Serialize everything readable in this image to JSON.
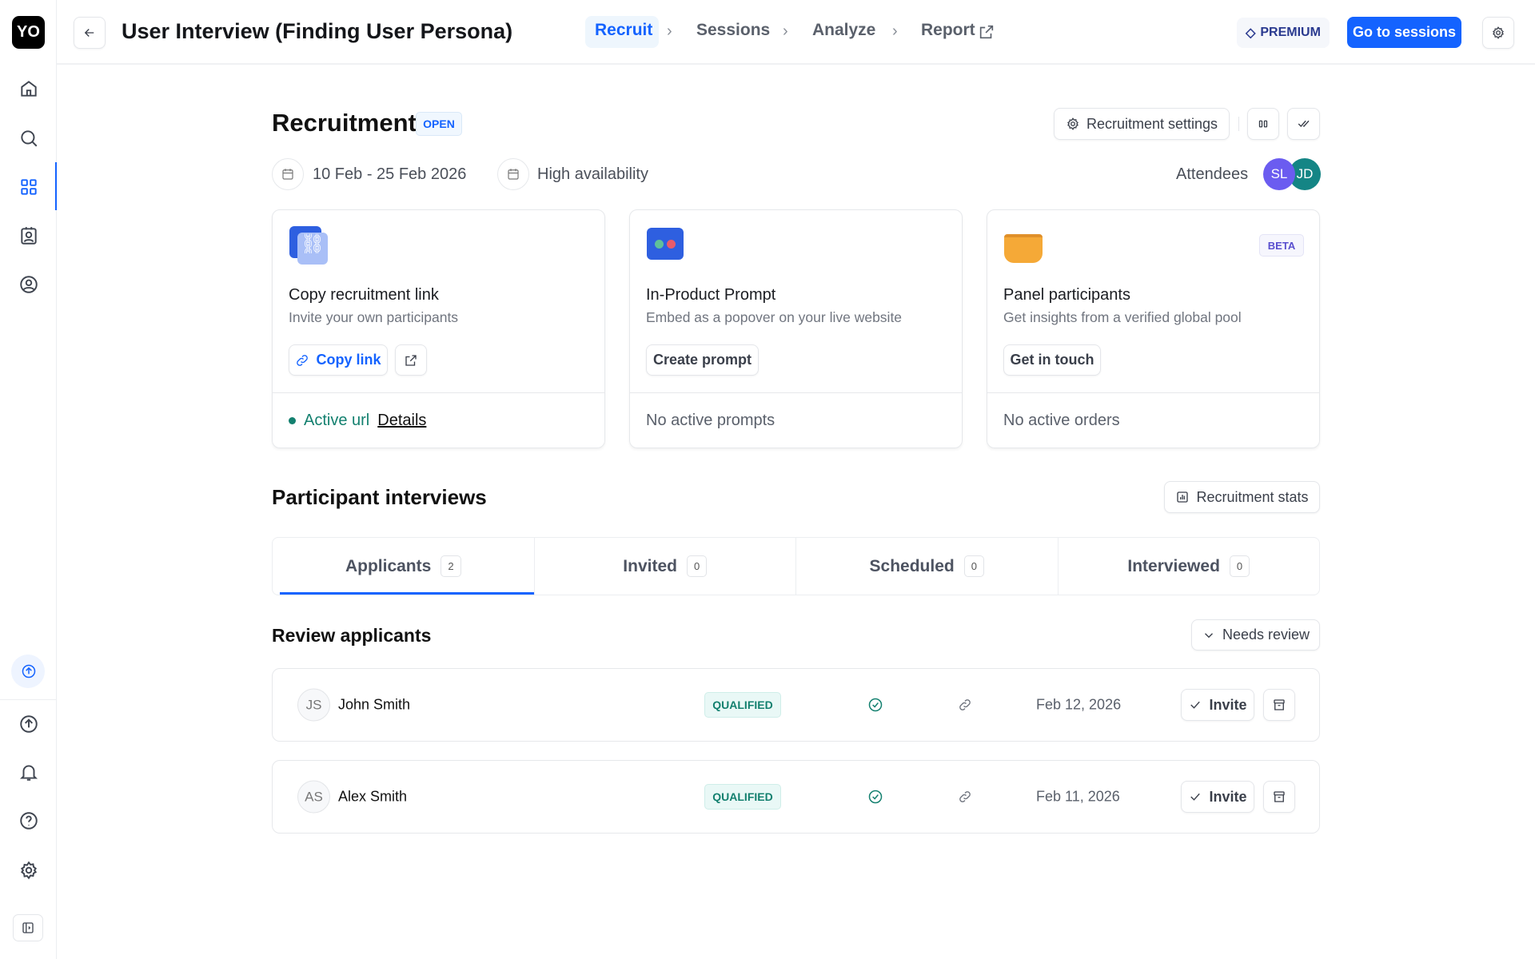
{
  "sidebar": {
    "logo": "YO",
    "items": [
      "home-icon",
      "search-icon",
      "grid-icon",
      "contacts-icon",
      "user-settings-icon"
    ],
    "bottom": [
      "upload-icon",
      "bell-icon",
      "help-icon",
      "gear-icon",
      "panel-toggle-icon"
    ]
  },
  "header": {
    "title": "User Interview (Finding User Persona)",
    "crumbs": [
      "Recruit",
      "Sessions",
      "Analyze",
      "Report"
    ],
    "premium": "PREMIUM",
    "go_to_sessions": "Go to sessions"
  },
  "recruitment": {
    "title": "Recruitment",
    "status": "OPEN",
    "settings": "Recruitment settings",
    "date_range": "10 Feb - 25 Feb 2026",
    "availability": "High availability",
    "attendees_label": "Attendees",
    "attendees": [
      {
        "initials": "SL",
        "color": "#6b5cf0"
      },
      {
        "initials": "JD",
        "color": "#148585"
      }
    ]
  },
  "cards": [
    {
      "title": "Copy recruitment link",
      "subtitle": "Invite your own participants",
      "button": "Copy link",
      "footer_status": "Active url",
      "footer_link": "Details"
    },
    {
      "title": "In-Product Prompt",
      "subtitle": "Embed as a popover on your live website",
      "button": "Create prompt",
      "footer": "No active prompts"
    },
    {
      "title": "Panel participants",
      "subtitle": "Get insights from a verified global pool",
      "button": "Get in touch",
      "footer": "No active orders",
      "badge": "BETA"
    }
  ],
  "interviews": {
    "title": "Participant interviews",
    "stats": "Recruitment stats",
    "tabs": [
      {
        "label": "Applicants",
        "count": "2"
      },
      {
        "label": "Invited",
        "count": "0"
      },
      {
        "label": "Scheduled",
        "count": "0"
      },
      {
        "label": "Interviewed",
        "count": "0"
      }
    ]
  },
  "review": {
    "title": "Review applicants",
    "filter": "Needs review",
    "invite": "Invite",
    "rows": [
      {
        "initials": "JS",
        "name": "John Smith",
        "status": "QUALIFIED",
        "date": "Feb 12, 2026"
      },
      {
        "initials": "AS",
        "name": "Alex Smith",
        "status": "QUALIFIED",
        "date": "Feb 11, 2026"
      }
    ]
  },
  "colors": {
    "accent": "#1463ff",
    "success": "#13806f"
  }
}
